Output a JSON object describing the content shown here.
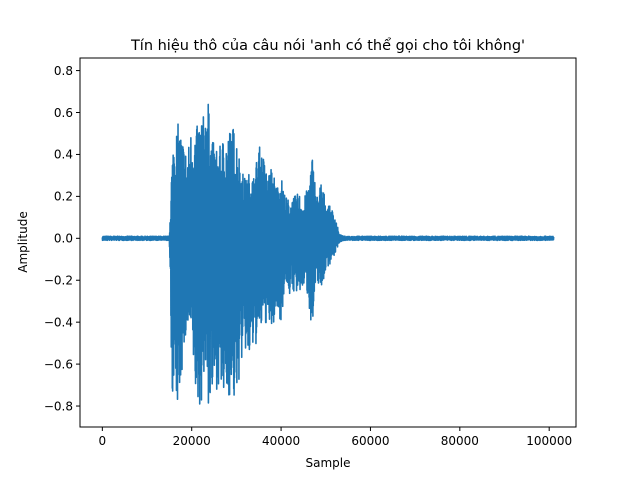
{
  "chart_data": {
    "type": "line",
    "title": "Tín hiệu thô của câu nói 'anh có thể gọi cho tôi không'",
    "xlabel": "Sample",
    "ylabel": "Amplitude",
    "xlim": [
      -5000,
      106000
    ],
    "ylim": [
      -0.9,
      0.86
    ],
    "x_ticks": [
      0,
      20000,
      40000,
      60000,
      80000,
      100000
    ],
    "x_tick_labels": [
      "0",
      "20000",
      "40000",
      "60000",
      "80000",
      "100000"
    ],
    "y_ticks": [
      -0.8,
      -0.6,
      -0.4,
      -0.2,
      0.0,
      0.2,
      0.4,
      0.6,
      0.8
    ],
    "y_tick_labels": [
      "−0.8",
      "−0.6",
      "−0.4",
      "−0.2",
      "0.0",
      "0.2",
      "0.4",
      "0.6",
      "0.8"
    ],
    "grid": false,
    "legend": "none",
    "series": [
      {
        "color": "#1f77b4",
        "envelope": {
          "x": [
            0,
            15000,
            15500,
            16000,
            17000,
            18000,
            19000,
            20000,
            21000,
            22000,
            23000,
            23500,
            24000,
            25000,
            26000,
            27000,
            28000,
            29000,
            30000,
            31000,
            32000,
            33000,
            34000,
            35000,
            36000,
            37000,
            38000,
            39000,
            40000,
            41000,
            42000,
            43000,
            44000,
            45000,
            46000,
            47000,
            48000,
            49000,
            50000,
            51000,
            52000,
            53000,
            54000,
            101000
          ],
          "upper": [
            0.01,
            0.01,
            0.35,
            0.5,
            0.55,
            0.48,
            0.4,
            0.55,
            0.52,
            0.6,
            0.58,
            0.79,
            0.52,
            0.45,
            0.42,
            0.48,
            0.5,
            0.55,
            0.5,
            0.35,
            0.28,
            0.32,
            0.3,
            0.45,
            0.4,
            0.3,
            0.35,
            0.25,
            0.3,
            0.2,
            0.18,
            0.2,
            0.22,
            0.18,
            0.25,
            0.4,
            0.2,
            0.28,
            0.18,
            0.15,
            0.12,
            0.02,
            0.01,
            0.01
          ],
          "lower": [
            -0.01,
            -0.01,
            -0.7,
            -0.8,
            -0.82,
            -0.6,
            -0.45,
            -0.5,
            -0.8,
            -0.82,
            -0.6,
            -0.8,
            -0.83,
            -0.75,
            -0.7,
            -0.8,
            -0.75,
            -0.78,
            -0.8,
            -0.6,
            -0.55,
            -0.6,
            -0.52,
            -0.5,
            -0.4,
            -0.42,
            -0.45,
            -0.35,
            -0.4,
            -0.2,
            -0.28,
            -0.25,
            -0.3,
            -0.22,
            -0.28,
            -0.45,
            -0.2,
            -0.25,
            -0.15,
            -0.12,
            -0.08,
            -0.02,
            -0.01,
            -0.01
          ]
        }
      }
    ]
  }
}
